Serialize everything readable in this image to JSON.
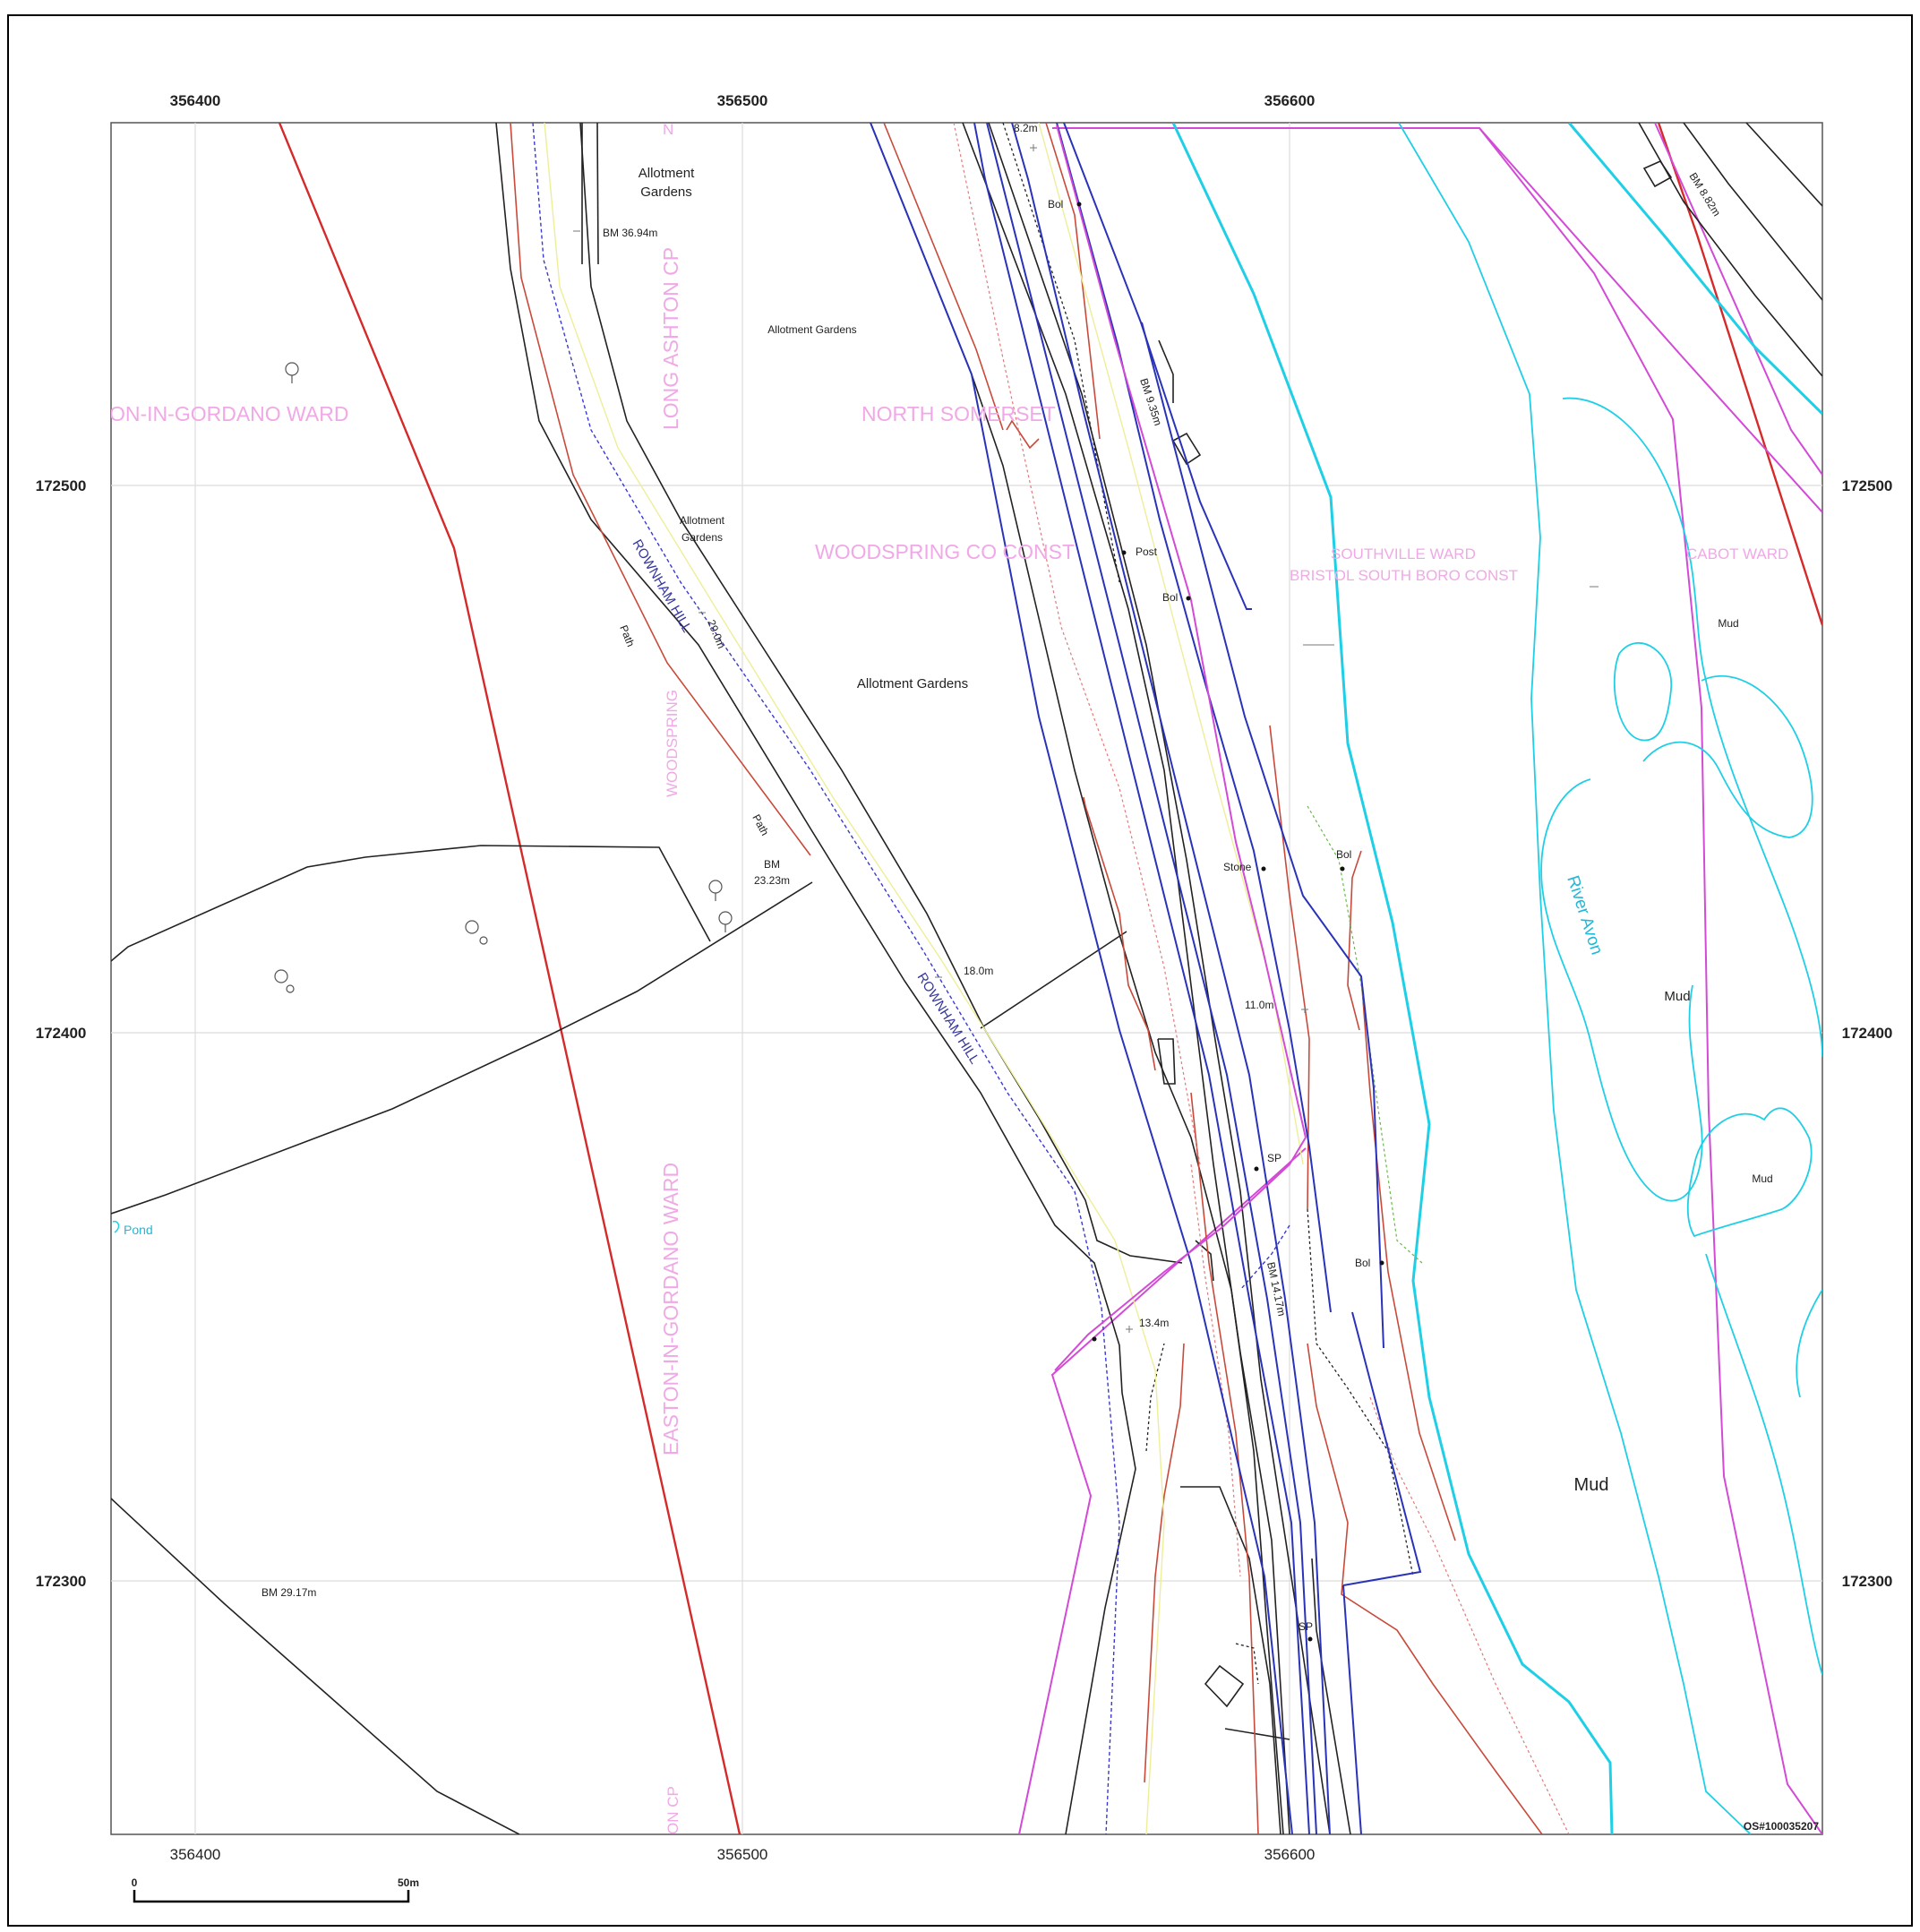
{
  "grid": {
    "eastings": [
      "356400",
      "356500",
      "356600"
    ],
    "northings": [
      "172500",
      "172400",
      "172300"
    ]
  },
  "copyright": "OS#100035207",
  "scale_bar": {
    "start": "0",
    "end": "50m"
  },
  "admin_labels": {
    "easton_ward_top": "ON-IN-GORDANO WARD",
    "north_somerset": "NORTH SOMERSET",
    "long_ashton": "LONG ASHTON CP",
    "woodspring_co": "WOODSPRING CO CONST",
    "woodspring_small": "WOODSPRING",
    "southville": "SOUTHVILLE WARD",
    "bristol_south": "BRISTOL SOUTH BORO CONST",
    "cabot": "CABOT WARD",
    "easton_ward_lower": "EASTON-IN-GORDANO WARD",
    "on_cp_bottom": "ON CP",
    "top_n": "N"
  },
  "place_labels": {
    "allotment_1": [
      "Allotment",
      "Gardens"
    ],
    "allotment_2": "Allotment Gardens",
    "allotment_3": [
      "Allotment",
      "Gardens"
    ],
    "allotment_4": "Allotment Gardens",
    "path_1": "Path",
    "path_2": "Path",
    "road_1": "ROWNHAM HILL",
    "road_2": "ROWNHAM HILL",
    "river": "River Avon",
    "pond": "Pond",
    "mud_1": "Mud",
    "mud_2": "Mud",
    "mud_3": "Mud",
    "mud_4": "Mud"
  },
  "heights": {
    "bm_3694": "BM 36.94m",
    "h_290": "29.0m",
    "bm_2323": [
      "BM",
      "23.23m"
    ],
    "h_180": "18.0m",
    "h_82": "8.2m",
    "bm_935": "BM 9.35m",
    "h_110": "11.0m",
    "h_134": "13.4m",
    "bm_1417": "BM 14.17m",
    "bm_2917": "BM 29.17m",
    "bm_882": "BM 8.82m"
  },
  "features": {
    "bol_1": "Bol",
    "bol_2": "Bol",
    "bol_3": "Bol",
    "bol_4": "Bol",
    "post": "Post",
    "stone": "Stone",
    "sp_1": "SP",
    "sp_2": "SP"
  },
  "colors": {
    "boundary_red": "#d42a2a",
    "road_blue": "#2a33b8",
    "water_cyan": "#1fcfe6",
    "admin_magenta": "#d24ad6",
    "admin_text": "#f0a8e6",
    "grid": "#dddddd"
  }
}
